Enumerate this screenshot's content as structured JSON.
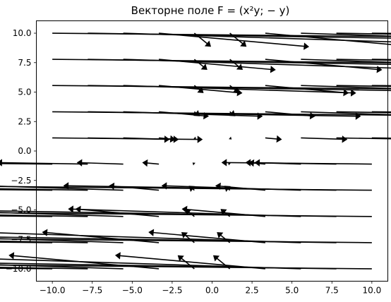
{
  "chart_data": {
    "type": "quiver",
    "title": "Векторне поле F = (x²y; − y)",
    "xlabel": "",
    "ylabel": "",
    "xlim": [
      -11,
      11
    ],
    "ylim": [
      -11.05,
      11.05
    ],
    "x_ticks": [
      "−10.0",
      "−7.5",
      "−5.0",
      "−2.5",
      "0.0",
      "2.5",
      "5.0",
      "7.5",
      "10.0"
    ],
    "y_ticks": [
      "10.0",
      "7.5",
      "5.0",
      "2.5",
      "0.0",
      "−2.5",
      "−5.0",
      "−7.5",
      "−10.0"
    ],
    "grid": false,
    "legend": "none",
    "field": {
      "u": "x^2*y",
      "v": "-y"
    },
    "x": [
      -10.0,
      -7.78,
      -5.56,
      -3.33,
      -1.11,
      1.11,
      3.33,
      5.56,
      7.78,
      10.0
    ],
    "y": [
      -10.0,
      -7.78,
      -5.56,
      -3.33,
      -1.11,
      1.11,
      3.33,
      5.56,
      7.78,
      10.0
    ],
    "arrow_color": "#000000"
  }
}
